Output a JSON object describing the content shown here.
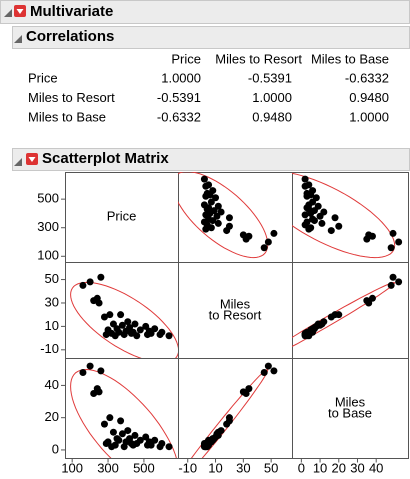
{
  "report": {
    "title": "Multivariate",
    "correlations": {
      "title": "Correlations",
      "columns": [
        "Price",
        "Miles to Resort",
        "Miles to Base"
      ],
      "rows": [
        {
          "label": "Price",
          "cells": [
            "1.0000",
            "-0.5391",
            "-0.6332"
          ]
        },
        {
          "label": "Miles to Resort",
          "cells": [
            "-0.5391",
            "1.0000",
            "0.9480"
          ]
        },
        {
          "label": "Miles to Base",
          "cells": [
            "-0.6332",
            "0.9480",
            "1.0000"
          ]
        }
      ],
      "positive_color": "#1c1ca8",
      "negative_color": "#b5354f"
    },
    "scatterplot_matrix": {
      "title": "Scatterplot Matrix",
      "type": "scatter",
      "diagonal_labels": [
        [
          "Price"
        ],
        [
          "Miles",
          "to Resort"
        ],
        [
          "Miles",
          "to Base"
        ]
      ],
      "point_color": "#000000",
      "ellipse_color": "#e03a3a",
      "axes": [
        {
          "lim": [
            60,
            690
          ],
          "xticks": [
            100,
            300,
            500
          ],
          "yticks": [
            100,
            300,
            500
          ]
        },
        {
          "lim": [
            -17,
            65
          ],
          "xticks": [
            -10,
            10,
            30,
            50
          ],
          "yticks": [
            -10,
            10,
            30,
            50
          ]
        },
        {
          "lim": [
            -5,
            57
          ],
          "xticks": [
            0,
            10,
            20,
            30,
            40
          ],
          "yticks": [
            0,
            20,
            40
          ]
        }
      ],
      "values": [
        [
          640,
          600,
          590,
          560,
          540,
          530,
          520,
          510,
          480,
          460,
          450,
          440,
          430,
          420,
          410,
          400,
          390,
          380,
          370,
          360,
          350,
          340,
          330,
          320,
          310,
          300,
          290,
          280,
          250,
          240,
          220,
          200,
          160,
          260
        ],
        [
          2,
          5,
          3,
          8,
          4,
          6,
          3,
          10,
          7,
          2,
          12,
          5,
          4,
          9,
          14,
          6,
          3,
          11,
          20,
          5,
          8,
          2,
          12,
          4,
          20,
          7,
          3,
          18,
          30,
          34,
          32,
          48,
          45,
          52
        ],
        [
          2,
          4,
          2,
          6,
          3,
          5,
          3,
          8,
          6,
          4,
          9,
          3,
          4,
          7,
          12,
          5,
          2,
          10,
          18,
          6,
          7,
          3,
          11,
          2,
          20,
          5,
          4,
          16,
          36,
          38,
          35,
          52,
          48,
          49
        ]
      ]
    }
  }
}
